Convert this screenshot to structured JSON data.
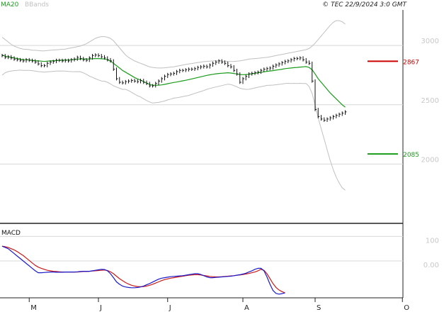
{
  "header": {
    "legend_ma": "MA20",
    "legend_bbands": "BBands",
    "copyright": "© TEC 22/9/2024 3:0 GMT"
  },
  "colors": {
    "ma": "#1a9c1a",
    "bbands": "#c0c0c0",
    "price": "#111111",
    "resistance": "#cc0000",
    "support": "#1a9c1a",
    "macd": "#1a1acc",
    "signal": "#cc1a1a",
    "grid": "#d8d8d8",
    "axis_label": "#c8c8c8"
  },
  "chart_data": [
    {
      "type": "line",
      "panel": "price",
      "legend": [
        "MA20",
        "BBands"
      ],
      "y_ticks": [
        2000,
        2500,
        3000
      ],
      "y_tick_labels": [
        "2000",
        "2500",
        "3000"
      ],
      "ylim": [
        1500,
        3300
      ],
      "x_range": [
        0,
        133
      ],
      "month_ticks": [
        {
          "label": "M",
          "i": 9
        },
        {
          "label": "J",
          "i": 32
        },
        {
          "label": "J",
          "i": 55
        },
        {
          "label": "A",
          "i": 80
        },
        {
          "label": "S",
          "i": 104
        },
        {
          "label": "O",
          "i": 133
        }
      ],
      "levels": [
        {
          "name": "resistance",
          "value": 2867,
          "label": "2867"
        },
        {
          "name": "support",
          "value": 2085,
          "label": "2085"
        }
      ],
      "price": [
        2915,
        2900,
        2905,
        2895,
        2885,
        2880,
        2875,
        2870,
        2880,
        2875,
        2870,
        2860,
        2845,
        2830,
        2830,
        2850,
        2860,
        2865,
        2875,
        2875,
        2870,
        2875,
        2870,
        2880,
        2885,
        2900,
        2890,
        2880,
        2875,
        2895,
        2915,
        2920,
        2915,
        2905,
        2895,
        2880,
        2870,
        2800,
        2720,
        2690,
        2685,
        2695,
        2700,
        2705,
        2700,
        2695,
        2705,
        2690,
        2680,
        2660,
        2660,
        2680,
        2700,
        2720,
        2740,
        2755,
        2760,
        2765,
        2780,
        2790,
        2790,
        2795,
        2800,
        2800,
        2805,
        2815,
        2820,
        2825,
        2820,
        2835,
        2850,
        2860,
        2870,
        2860,
        2850,
        2830,
        2820,
        2790,
        2760,
        2690,
        2720,
        2740,
        2760,
        2765,
        2770,
        2775,
        2790,
        2800,
        2805,
        2810,
        2825,
        2835,
        2845,
        2855,
        2865,
        2870,
        2880,
        2890,
        2890,
        2895,
        2880,
        2860,
        2850,
        2700,
        2460,
        2400,
        2380,
        2370,
        2380,
        2390,
        2400,
        2410,
        2420,
        2430,
        2440
      ],
      "ma20": [
        2920,
        2910,
        2905,
        2900,
        2895,
        2890,
        2885,
        2880,
        2880,
        2878,
        2875,
        2872,
        2870,
        2868,
        2865,
        2868,
        2870,
        2872,
        2873,
        2875,
        2876,
        2877,
        2878,
        2880,
        2882,
        2885,
        2887,
        2887,
        2886,
        2886,
        2888,
        2890,
        2890,
        2888,
        2887,
        2880,
        2868,
        2850,
        2830,
        2810,
        2790,
        2775,
        2760,
        2745,
        2730,
        2718,
        2708,
        2695,
        2683,
        2672,
        2665,
        2665,
        2665,
        2668,
        2672,
        2678,
        2683,
        2688,
        2692,
        2697,
        2702,
        2707,
        2712,
        2718,
        2724,
        2730,
        2736,
        2742,
        2748,
        2753,
        2757,
        2761,
        2764,
        2766,
        2768,
        2770,
        2768,
        2764,
        2760,
        2755,
        2754,
        2755,
        2758,
        2762,
        2766,
        2770,
        2774,
        2778,
        2782,
        2785,
        2788,
        2792,
        2796,
        2800,
        2805,
        2808,
        2810,
        2813,
        2815,
        2818,
        2820,
        2822,
        2815,
        2795,
        2760,
        2720,
        2690,
        2660,
        2630,
        2600,
        2575,
        2550,
        2525,
        2500,
        2480
      ],
      "bb_upper": [
        3070,
        3050,
        3030,
        3010,
        2995,
        2985,
        2975,
        2970,
        2968,
        2965,
        2960,
        2960,
        2958,
        2955,
        2955,
        2958,
        2960,
        2962,
        2964,
        2966,
        2968,
        2970,
        2975,
        2980,
        2985,
        2990,
        2995,
        3005,
        3015,
        3030,
        3045,
        3060,
        3070,
        3075,
        3075,
        3070,
        3060,
        3040,
        3010,
        2980,
        2950,
        2920,
        2900,
        2885,
        2870,
        2860,
        2850,
        2840,
        2830,
        2820,
        2815,
        2812,
        2810,
        2810,
        2812,
        2815,
        2818,
        2820,
        2825,
        2830,
        2835,
        2840,
        2845,
        2848,
        2852,
        2856,
        2860,
        2864,
        2866,
        2868,
        2870,
        2872,
        2872,
        2870,
        2868,
        2866,
        2865,
        2866,
        2868,
        2870,
        2875,
        2880,
        2885,
        2888,
        2890,
        2892,
        2895,
        2898,
        2900,
        2905,
        2910,
        2915,
        2920,
        2925,
        2930,
        2935,
        2940,
        2945,
        2950,
        2955,
        2960,
        2965,
        2975,
        2995,
        3020,
        3050,
        3080,
        3110,
        3140,
        3170,
        3195,
        3210,
        3210,
        3200,
        3180
      ],
      "bb_lower": [
        2750,
        2770,
        2780,
        2785,
        2788,
        2790,
        2792,
        2790,
        2790,
        2790,
        2788,
        2784,
        2780,
        2778,
        2775,
        2778,
        2780,
        2782,
        2784,
        2785,
        2784,
        2784,
        2781,
        2780,
        2779,
        2780,
        2779,
        2769,
        2757,
        2742,
        2731,
        2720,
        2710,
        2701,
        2699,
        2690,
        2676,
        2660,
        2650,
        2640,
        2630,
        2630,
        2620,
        2605,
        2590,
        2576,
        2566,
        2550,
        2536,
        2524,
        2515,
        2518,
        2520,
        2526,
        2532,
        2541,
        2548,
        2556,
        2559,
        2564,
        2569,
        2574,
        2579,
        2588,
        2596,
        2604,
        2612,
        2620,
        2630,
        2638,
        2644,
        2650,
        2656,
        2662,
        2668,
        2674,
        2671,
        2662,
        2652,
        2640,
        2633,
        2630,
        2631,
        2636,
        2642,
        2648,
        2653,
        2658,
        2664,
        2665,
        2666,
        2669,
        2672,
        2675,
        2680,
        2681,
        2680,
        2681,
        2680,
        2681,
        2680,
        2679,
        2655,
        2595,
        2500,
        2390,
        2300,
        2210,
        2120,
        2030,
        1955,
        1890,
        1840,
        1800,
        1780
      ]
    },
    {
      "type": "line",
      "panel": "macd",
      "title": "MACD",
      "y_ticks": [
        0,
        100
      ],
      "y_tick_labels": [
        "0.00",
        "100"
      ],
      "ylim": [
        -150,
        150
      ],
      "macd": [
        60,
        55,
        50,
        40,
        30,
        20,
        10,
        0,
        -10,
        -20,
        -30,
        -40,
        -48,
        -48,
        -47,
        -46,
        -45,
        -45,
        -46,
        -46,
        -46,
        -45,
        -45,
        -45,
        -45,
        -44,
        -43,
        -42,
        -42,
        -42,
        -40,
        -38,
        -36,
        -34,
        -35,
        -40,
        -52,
        -68,
        -85,
        -95,
        -102,
        -106,
        -108,
        -109,
        -109,
        -108,
        -106,
        -102,
        -97,
        -92,
        -86,
        -80,
        -74,
        -70,
        -68,
        -66,
        -64,
        -63,
        -62,
        -61,
        -60,
        -58,
        -56,
        -54,
        -52,
        -52,
        -55,
        -60,
        -65,
        -68,
        -68,
        -67,
        -66,
        -65,
        -64,
        -63,
        -62,
        -60,
        -58,
        -56,
        -53,
        -50,
        -45,
        -40,
        -34,
        -30,
        -30,
        -40,
        -65,
        -95,
        -120,
        -132,
        -135,
        -133,
        -130
      ],
      "signal": [
        60,
        58,
        55,
        50,
        45,
        38,
        30,
        22,
        12,
        2,
        -8,
        -18,
        -25,
        -30,
        -34,
        -38,
        -40,
        -42,
        -43,
        -44,
        -45,
        -45,
        -45,
        -45,
        -45,
        -45,
        -44,
        -43,
        -43,
        -42,
        -41,
        -40,
        -39,
        -38,
        -37,
        -39,
        -44,
        -52,
        -62,
        -72,
        -80,
        -88,
        -94,
        -99,
        -102,
        -104,
        -105,
        -104,
        -102,
        -99,
        -95,
        -90,
        -85,
        -80,
        -76,
        -73,
        -70,
        -68,
        -66,
        -64,
        -62,
        -60,
        -58,
        -57,
        -56,
        -56,
        -57,
        -59,
        -61,
        -63,
        -64,
        -65,
        -65,
        -64,
        -63,
        -62,
        -61,
        -60,
        -58,
        -57,
        -55,
        -53,
        -51,
        -48,
        -45,
        -40,
        -34,
        -38,
        -52,
        -72,
        -92,
        -108,
        -118,
        -125,
        -130
      ]
    }
  ]
}
